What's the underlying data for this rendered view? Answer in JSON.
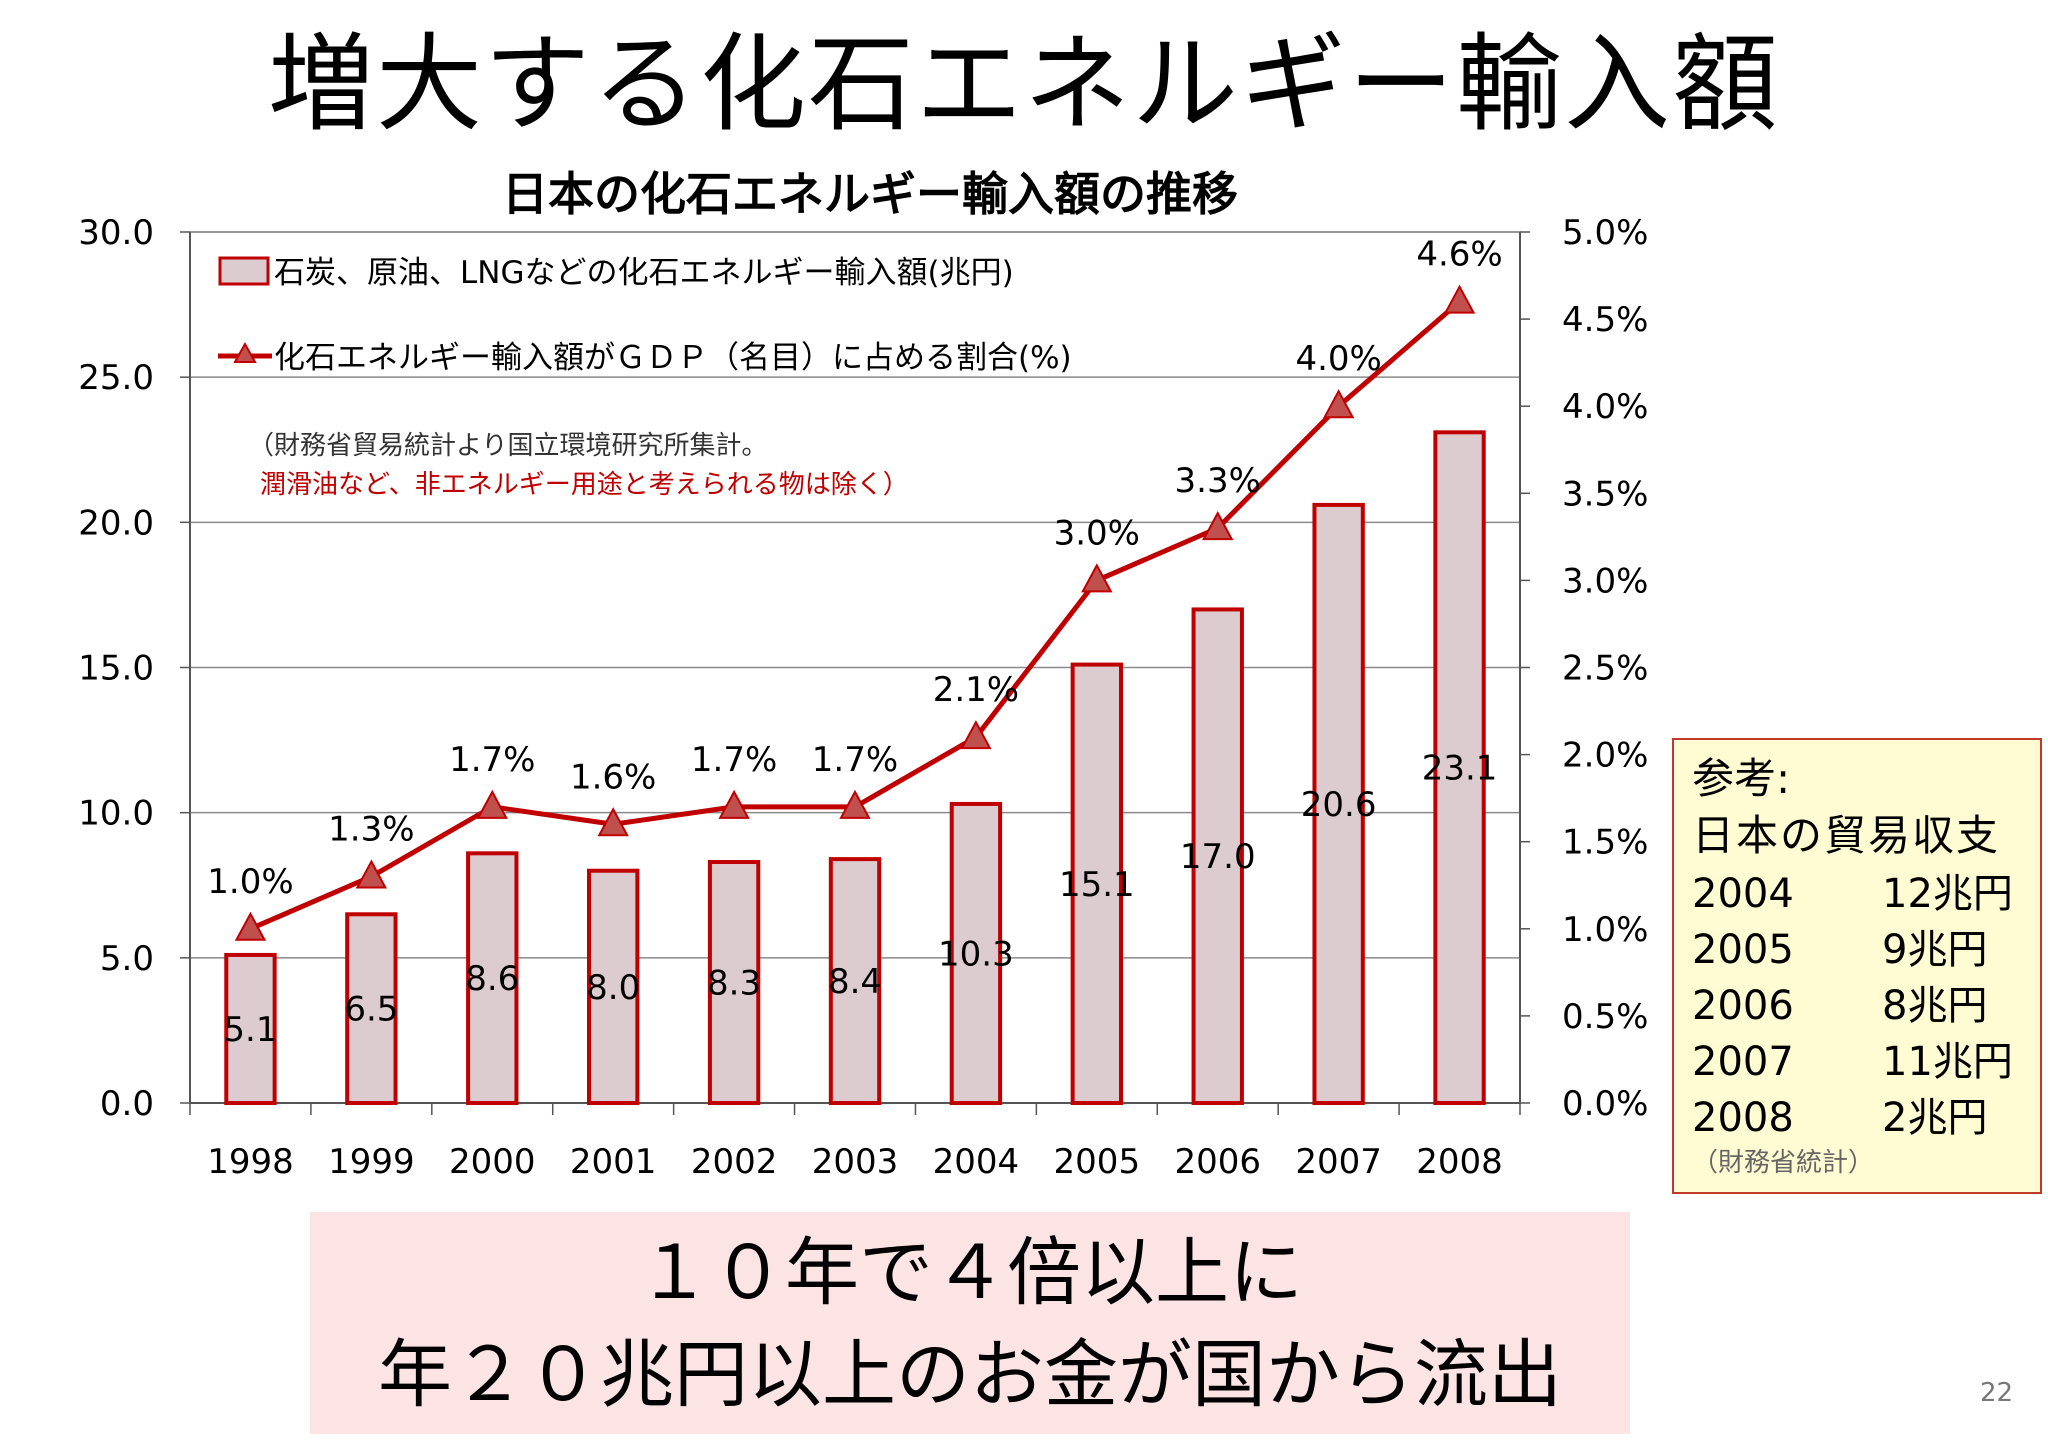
{
  "slide": {
    "title": "増大する化石エネルギー輸入額",
    "page_number": "22"
  },
  "chart_data": {
    "type": "bar",
    "title": "日本の化石エネルギー輸入額の推移",
    "categories": [
      "1998",
      "1999",
      "2000",
      "2001",
      "2002",
      "2003",
      "2004",
      "2005",
      "2006",
      "2007",
      "2008"
    ],
    "series": [
      {
        "name": "石炭、原油、LNGなどの化石エネルギー輸入額(兆円)",
        "type": "bar",
        "axis": "left",
        "values": [
          5.1,
          6.5,
          8.6,
          8.0,
          8.3,
          8.4,
          10.3,
          15.1,
          17.0,
          20.6,
          23.1
        ],
        "labels": [
          "5.1",
          "6.5",
          "8.6",
          "8.0",
          "8.3",
          "8.4",
          "10.3",
          "15.1",
          "17.0",
          "20.6",
          "23.1"
        ],
        "fill": "#dccccf",
        "stroke": "#c00000"
      },
      {
        "name": "化石エネルギー輸入額がＧＤＰ（名目）に占める割合(%)",
        "type": "line",
        "axis": "right",
        "values": [
          1.0,
          1.3,
          1.7,
          1.6,
          1.7,
          1.7,
          2.1,
          3.0,
          3.3,
          4.0,
          4.6
        ],
        "labels": [
          "1.0%",
          "1.3%",
          "1.7%",
          "1.6%",
          "1.7%",
          "1.7%",
          "2.1%",
          "3.0%",
          "3.3%",
          "4.0%",
          "4.6%"
        ],
        "color": "#c00000",
        "marker": "triangle"
      }
    ],
    "y_left": {
      "range": [
        0,
        30
      ],
      "ticks": [
        "0.0",
        "5.0",
        "10.0",
        "15.0",
        "20.0",
        "25.0",
        "30.0"
      ]
    },
    "y_right": {
      "range": [
        0,
        5
      ],
      "ticks": [
        "0.0%",
        "0.5%",
        "1.0%",
        "1.5%",
        "2.0%",
        "2.5%",
        "3.0%",
        "3.5%",
        "4.0%",
        "4.5%",
        "5.0%"
      ]
    },
    "grid": true,
    "legend_position": "top-left",
    "note": {
      "line1": "（財務省貿易統計より国立環境研究所集計。",
      "line2": "潤滑油など、非エネルギー用途と考えられる物は除く）",
      "line2_color": "#c00000"
    }
  },
  "reference": {
    "heading": "参考:",
    "title": "日本の貿易収支",
    "rows": [
      {
        "year": "2004",
        "value": "12兆円"
      },
      {
        "year": "2005",
        "value": "9兆円"
      },
      {
        "year": "2006",
        "value": "8兆円"
      },
      {
        "year": "2007",
        "value": "11兆円"
      },
      {
        "year": "2008",
        "value": "2兆円"
      }
    ],
    "source": "（財務省統計）"
  },
  "conclusion": {
    "line1": "１０年で４倍以上に",
    "line2": "年２０兆円以上のお金が国から流出"
  }
}
